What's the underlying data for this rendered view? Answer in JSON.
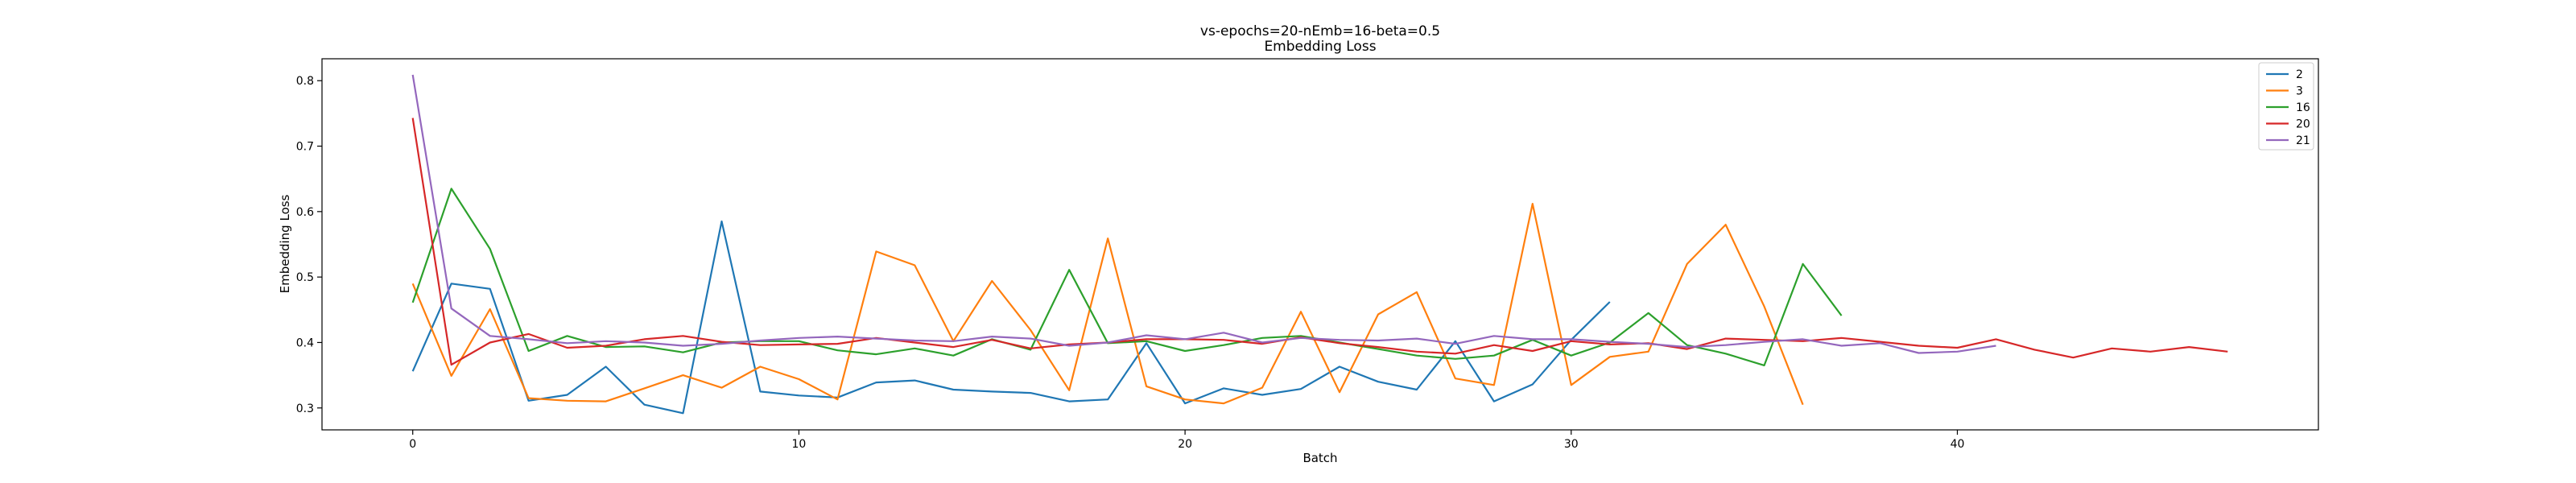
{
  "chart_data": {
    "type": "line",
    "title": "vs-epochs=20-nEmb=16-beta=0.5",
    "subtitle": "Embedding Loss",
    "xlabel": "Batch",
    "ylabel": "Embedding Loss",
    "xlim": [
      -2.35,
      49.35
    ],
    "ylim": [
      0.2665,
      0.8335
    ],
    "xticks": [
      0,
      10,
      20,
      30,
      40
    ],
    "yticks": [
      0.3,
      0.4,
      0.5,
      0.6,
      0.7,
      0.8
    ],
    "xtick_labels": [
      "0",
      "10",
      "20",
      "30",
      "40"
    ],
    "ytick_labels": [
      "0.3",
      "0.4",
      "0.5",
      "0.6",
      "0.7",
      "0.8"
    ],
    "grid": false,
    "legend_position": "top-right",
    "series": [
      {
        "name": "2",
        "color": "#1f77b4",
        "values": [
          0.356,
          0.49,
          0.482,
          0.311,
          0.32,
          0.363,
          0.305,
          0.292,
          0.585,
          0.325,
          0.319,
          0.316,
          0.339,
          0.342,
          0.328,
          0.325,
          0.323,
          0.31,
          0.313,
          0.399,
          0.307,
          0.33,
          0.32,
          0.329,
          0.363,
          0.34,
          0.328,
          0.402,
          0.31,
          0.336,
          0.404,
          0.462
        ]
      },
      {
        "name": "3",
        "color": "#ff7f0e",
        "values": [
          0.49,
          0.349,
          0.451,
          0.315,
          0.311,
          0.31,
          0.33,
          0.35,
          0.331,
          0.363,
          0.344,
          0.313,
          0.539,
          0.518,
          0.402,
          0.494,
          0.419,
          0.327,
          0.559,
          0.333,
          0.313,
          0.307,
          0.331,
          0.447,
          0.324,
          0.443,
          0.477,
          0.345,
          0.335,
          0.612,
          0.335,
          0.378,
          0.386,
          0.52,
          0.58,
          0.455,
          0.305
        ]
      },
      {
        "name": "16",
        "color": "#2ca02c",
        "values": [
          0.461,
          0.635,
          0.543,
          0.387,
          0.41,
          0.393,
          0.394,
          0.385,
          0.4,
          0.402,
          0.402,
          0.388,
          0.382,
          0.391,
          0.38,
          0.405,
          0.389,
          0.511,
          0.399,
          0.402,
          0.387,
          0.396,
          0.407,
          0.41,
          0.4,
          0.39,
          0.38,
          0.375,
          0.38,
          0.404,
          0.38,
          0.4,
          0.445,
          0.396,
          0.383,
          0.365,
          0.52,
          0.441
        ]
      },
      {
        "name": "20",
        "color": "#d62728",
        "values": [
          0.743,
          0.366,
          0.4,
          0.413,
          0.392,
          0.395,
          0.405,
          0.41,
          0.401,
          0.396,
          0.397,
          0.398,
          0.407,
          0.4,
          0.393,
          0.404,
          0.391,
          0.397,
          0.4,
          0.405,
          0.405,
          0.404,
          0.398,
          0.408,
          0.399,
          0.393,
          0.386,
          0.383,
          0.396,
          0.387,
          0.402,
          0.397,
          0.399,
          0.39,
          0.406,
          0.404,
          0.402,
          0.407,
          0.401,
          0.395,
          0.392,
          0.405,
          0.389,
          0.377,
          0.391,
          0.386,
          0.393,
          0.386
        ]
      },
      {
        "name": "21",
        "color": "#9467bd",
        "values": [
          0.809,
          0.452,
          0.41,
          0.405,
          0.399,
          0.402,
          0.4,
          0.395,
          0.398,
          0.403,
          0.407,
          0.409,
          0.406,
          0.403,
          0.402,
          0.409,
          0.406,
          0.395,
          0.4,
          0.411,
          0.405,
          0.415,
          0.4,
          0.407,
          0.404,
          0.403,
          0.406,
          0.398,
          0.41,
          0.405,
          0.405,
          0.401,
          0.398,
          0.393,
          0.396,
          0.401,
          0.405,
          0.395,
          0.399,
          0.384,
          0.386,
          0.395
        ]
      }
    ]
  }
}
